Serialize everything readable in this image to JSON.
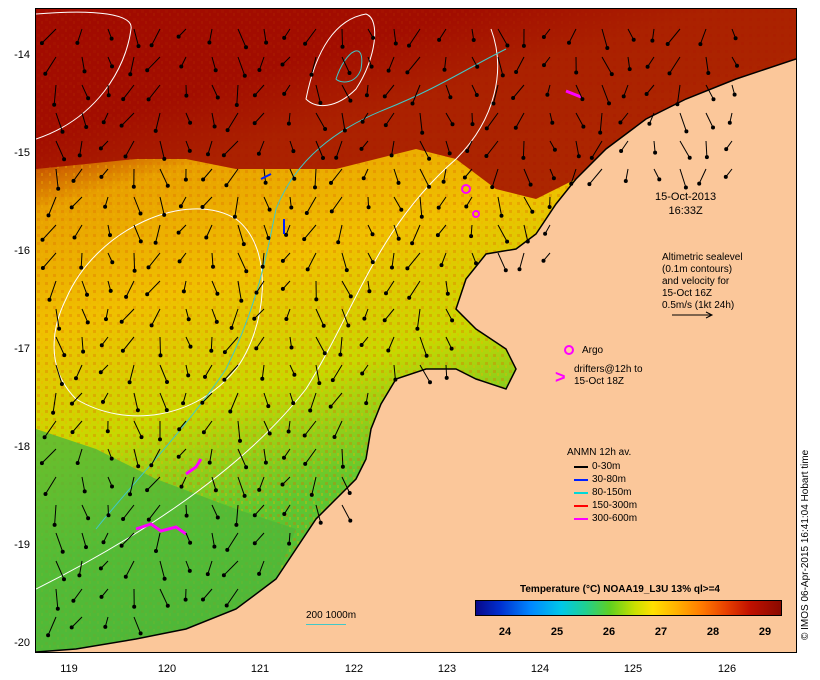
{
  "map": {
    "date": "15-Oct-2013",
    "time": "16:33Z",
    "altimetry_note": [
      "Altimetric sealevel",
      "(0.1m contours)",
      "and velocity for",
      "15-Oct 16Z",
      "0.5m/s (1kt 24h)"
    ],
    "argo_label": "Argo",
    "drifters_label": [
      "drifters@12h to",
      "15-Oct 18Z"
    ],
    "drifter_symbol": ">",
    "depth_scale_label": "200  1000m",
    "anmn_title": "ANMN 12h av.",
    "anmn_legend": [
      {
        "label": "0-30m",
        "color": "#000000"
      },
      {
        "label": "30-80m",
        "color": "#0020ff"
      },
      {
        "label": "80-150m",
        "color": "#00d8d8"
      },
      {
        "label": "150-300m",
        "color": "#ff0000"
      },
      {
        "label": "300-600m",
        "color": "#ff00ff"
      }
    ],
    "colorbar_title": "Temperature (°C) NOAA19_L3U 13% ql>=4",
    "colorbar_ticks": [
      "24",
      "25",
      "26",
      "27",
      "28",
      "29"
    ],
    "credit": "© IMOS 06-Apr-2015 16:41:04 Hobart time",
    "y_ticks": [
      "-14",
      "-15",
      "-16",
      "-17",
      "-18",
      "-19",
      "-20"
    ],
    "x_ticks": [
      "119",
      "120",
      "121",
      "122",
      "123",
      "124",
      "125",
      "126"
    ],
    "colors": {
      "land": "#fbc79a",
      "warm_sst": "#a00a00",
      "cool_sst": "#60c030",
      "argo": "#ff00ff",
      "contour": "#ffffff",
      "isobath": "#40c8c8"
    }
  }
}
